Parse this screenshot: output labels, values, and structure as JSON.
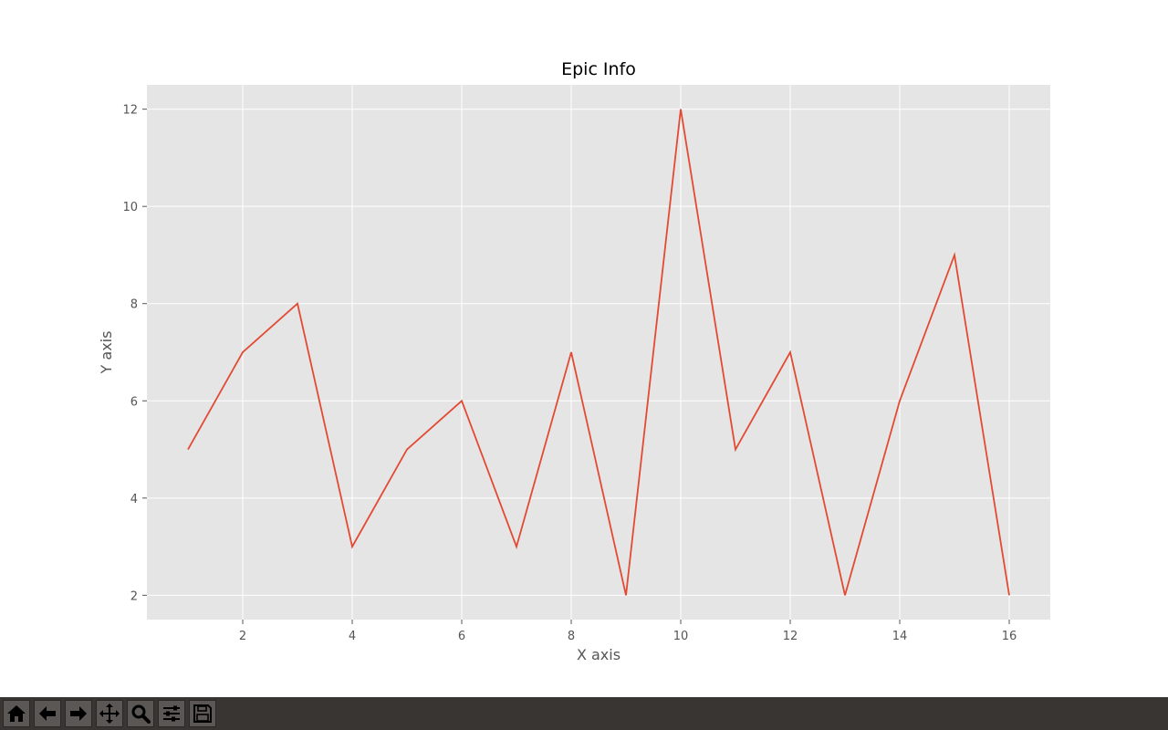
{
  "chart_data": {
    "type": "line",
    "title": "Epic Info",
    "xlabel": "X axis",
    "ylabel": "Y axis",
    "x": [
      1,
      2,
      3,
      4,
      5,
      6,
      7,
      8,
      9,
      10,
      11,
      12,
      13,
      14,
      15,
      16
    ],
    "series": [
      {
        "values": [
          5,
          7,
          8,
          3,
          5,
          6,
          3,
          7,
          2,
          12,
          5,
          7,
          2,
          6,
          9,
          2
        ],
        "color": "#E24A33"
      }
    ],
    "xlim": [
      0.25,
      16.75
    ],
    "ylim": [
      1.5,
      12.5
    ],
    "xticks": [
      2,
      4,
      6,
      8,
      10,
      12,
      14,
      16
    ],
    "yticks": [
      2,
      4,
      6,
      8,
      10,
      12
    ],
    "grid": true,
    "style": {
      "background": "#E5E5E5",
      "grid_color": "#FFFFFF"
    }
  },
  "toolbar": {
    "buttons": [
      {
        "name": "home-button",
        "icon": "home-icon"
      },
      {
        "name": "back-button",
        "icon": "arrow-left-icon"
      },
      {
        "name": "forward-button",
        "icon": "arrow-right-icon"
      },
      {
        "name": "pan-button",
        "icon": "move-icon"
      },
      {
        "name": "zoom-button",
        "icon": "magnifier-icon"
      },
      {
        "name": "configure-subplots-button",
        "icon": "sliders-icon"
      },
      {
        "name": "save-button",
        "icon": "floppy-disk-icon"
      }
    ]
  }
}
